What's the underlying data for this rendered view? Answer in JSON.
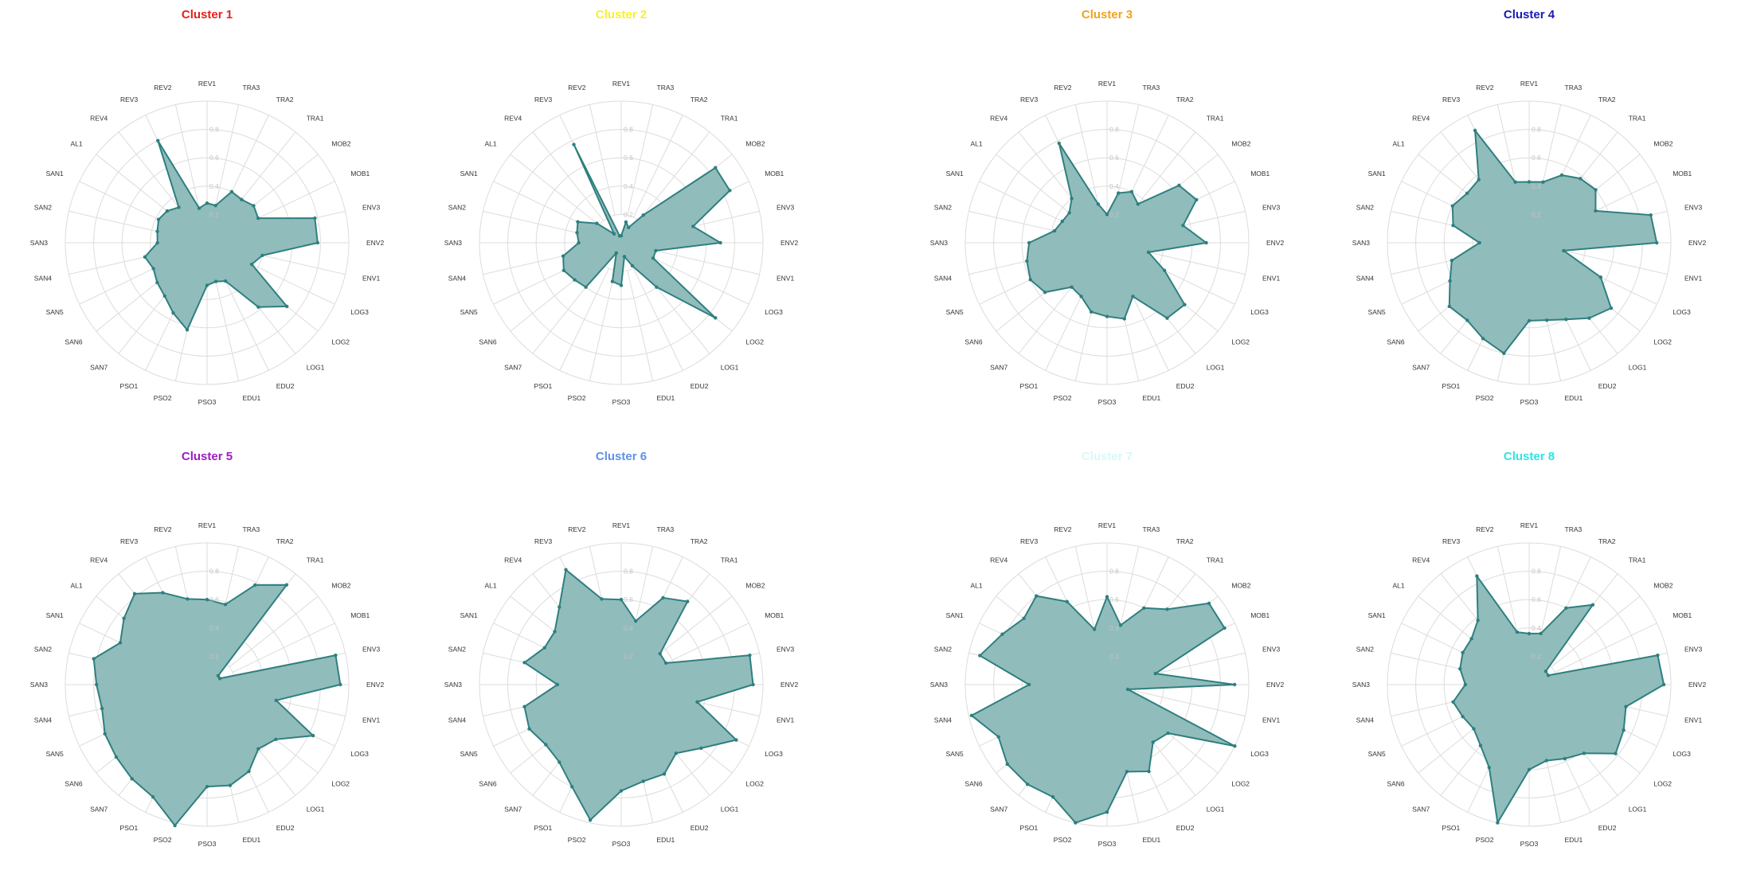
{
  "chart_data": [
    {
      "type": "radar",
      "title": "Cluster 1",
      "title_color": "#e3211c",
      "ylim": [
        0,
        0.8
      ],
      "ticks": [
        "0.2",
        "0.4",
        "0.6",
        "0.8"
      ],
      "axes": [
        "REV1",
        "TRA3",
        "TRA2",
        "TRA1",
        "MOB2",
        "MOB1",
        "ENV3",
        "ENV2",
        "ENV1",
        "LOG3",
        "LOG2",
        "LOG1",
        "EDU2",
        "EDU1",
        "PSO3",
        "PSO2",
        "PSO1",
        "SAN7",
        "SAN6",
        "SAN5",
        "SAN4",
        "SAN3",
        "SAN2",
        "SAN1",
        "AL1",
        "REV4",
        "REV3",
        "REV2"
      ],
      "values": [
        0.28,
        0.27,
        0.4,
        0.39,
        0.42,
        0.4,
        0.78,
        0.78,
        0.4,
        0.35,
        0.72,
        0.58,
        0.3,
        0.28,
        0.3,
        0.63,
        0.55,
        0.48,
        0.45,
        0.42,
        0.45,
        0.35,
        0.36,
        0.38,
        0.36,
        0.32,
        0.8,
        0.25
      ]
    },
    {
      "type": "radar",
      "title": "Cluster 2",
      "title_color": "#f7f032",
      "ylim": [
        0,
        0.8
      ],
      "ticks": [
        "0.2",
        "0.4",
        "0.6",
        "0.8"
      ],
      "axes": [
        "REV1",
        "TRA3",
        "TRA2",
        "TRA1",
        "MOB2",
        "MOB1",
        "ENV3",
        "ENV2",
        "ENV1",
        "LOG3",
        "LOG2",
        "LOG1",
        "EDU2",
        "EDU1",
        "PSO3",
        "PSO2",
        "PSO1",
        "SAN7",
        "SAN6",
        "SAN5",
        "SAN4",
        "SAN3",
        "SAN2",
        "SAN1",
        "AL1",
        "REV4",
        "REV3",
        "REV2"
      ],
      "values": [
        0.05,
        0.15,
        0.12,
        0.25,
        0.85,
        0.85,
        0.52,
        0.7,
        0.25,
        0.25,
        0.85,
        0.4,
        0.18,
        0.1,
        0.3,
        0.28,
        0.08,
        0.4,
        0.42,
        0.45,
        0.42,
        0.3,
        0.32,
        0.34,
        0.22,
        0.08,
        0.77,
        0.05
      ]
    },
    {
      "type": "radar",
      "title": "Cluster 3",
      "title_color": "#f0a21d",
      "ylim": [
        0,
        0.8
      ],
      "ticks": [
        "0.2",
        "0.4",
        "0.6",
        "0.8"
      ],
      "axes": [
        "REV1",
        "TRA3",
        "TRA2",
        "TRA1",
        "MOB2",
        "MOB1",
        "ENV3",
        "ENV2",
        "ENV1",
        "LOG3",
        "LOG2",
        "LOG1",
        "EDU2",
        "EDU1",
        "PSO3",
        "PSO2",
        "PSO1",
        "SAN7",
        "SAN6",
        "SAN5",
        "SAN4",
        "SAN3",
        "SAN2",
        "SAN1",
        "AL1",
        "REV4",
        "REV3",
        "REV2"
      ],
      "values": [
        0.2,
        0.36,
        0.4,
        0.35,
        0.65,
        0.7,
        0.55,
        0.7,
        0.3,
        0.45,
        0.7,
        0.68,
        0.42,
        0.55,
        0.52,
        0.5,
        0.42,
        0.4,
        0.56,
        0.6,
        0.58,
        0.55,
        0.38,
        0.35,
        0.34,
        0.4,
        0.78,
        0.28
      ]
    },
    {
      "type": "radar",
      "title": "Cluster 4",
      "title_color": "#1a1ab4",
      "ylim": [
        0,
        0.8
      ],
      "ticks": [
        "0.2",
        "0.4",
        "0.6",
        "0.8"
      ],
      "axes": [
        "REV1",
        "TRA3",
        "TRA2",
        "TRA1",
        "MOB2",
        "MOB1",
        "ENV3",
        "ENV2",
        "ENV1",
        "LOG3",
        "LOG2",
        "LOG1",
        "EDU2",
        "EDU1",
        "PSO3",
        "PSO2",
        "PSO1",
        "SAN7",
        "SAN6",
        "SAN5",
        "SAN4",
        "SAN3",
        "SAN2",
        "SAN1",
        "AL1",
        "REV4",
        "REV3",
        "REV2"
      ],
      "values": [
        0.43,
        0.44,
        0.53,
        0.58,
        0.6,
        0.52,
        0.88,
        0.9,
        0.25,
        0.56,
        0.74,
        0.68,
        0.6,
        0.56,
        0.55,
        0.8,
        0.75,
        0.7,
        0.72,
        0.62,
        0.56,
        0.35,
        0.55,
        0.6,
        0.56,
        0.57,
        0.88,
        0.44
      ]
    },
    {
      "type": "radar",
      "title": "Cluster 5",
      "title_color": "#9d1cc1",
      "ylim": [
        0,
        0.8
      ],
      "ticks": [
        "0.2",
        "0.4",
        "0.6",
        "0.8"
      ],
      "axes": [
        "REV1",
        "TRA3",
        "TRA2",
        "TRA1",
        "MOB2",
        "MOB1",
        "ENV3",
        "ENV2",
        "ENV1",
        "LOG3",
        "LOG2",
        "LOG1",
        "EDU2",
        "EDU1",
        "PSO3",
        "PSO2",
        "PSO1",
        "SAN7",
        "SAN6",
        "SAN5",
        "SAN4",
        "SAN3",
        "SAN2",
        "SAN1",
        "AL1",
        "REV4",
        "REV3",
        "REV2"
      ],
      "values": [
        0.6,
        0.58,
        0.78,
        0.9,
        0.1,
        0.1,
        0.93,
        0.94,
        0.5,
        0.83,
        0.62,
        0.58,
        0.68,
        0.73,
        0.72,
        1.02,
        0.88,
        0.85,
        0.82,
        0.8,
        0.76,
        0.78,
        0.82,
        0.68,
        0.75,
        0.82,
        0.72,
        0.62
      ]
    },
    {
      "type": "radar",
      "title": "Cluster 6",
      "title_color": "#5d93e6",
      "ylim": [
        0,
        0.8
      ],
      "ticks": [
        "0.2",
        "0.4",
        "0.6",
        "0.8"
      ],
      "axes": [
        "REV1",
        "TRA3",
        "TRA2",
        "TRA1",
        "MOB2",
        "MOB1",
        "ENV3",
        "ENV2",
        "ENV1",
        "LOG3",
        "LOG2",
        "LOG1",
        "EDU2",
        "EDU1",
        "PSO3",
        "PSO2",
        "PSO1",
        "SAN7",
        "SAN6",
        "SAN5",
        "SAN4",
        "SAN3",
        "SAN2",
        "SAN1",
        "AL1",
        "REV4",
        "REV3",
        "REV2"
      ],
      "values": [
        0.6,
        0.46,
        0.68,
        0.75,
        0.35,
        0.35,
        0.93,
        0.93,
        0.55,
        0.9,
        0.72,
        0.62,
        0.7,
        0.7,
        0.75,
        0.98,
        0.8,
        0.7,
        0.68,
        0.72,
        0.7,
        0.45,
        0.7,
        0.6,
        0.6,
        0.7,
        0.9,
        0.62
      ]
    },
    {
      "type": "radar",
      "title": "Cluster 7",
      "title_color": "#d8f8f8",
      "ylim": [
        0,
        0.8
      ],
      "ticks": [
        "0.2",
        "0.4",
        "0.6",
        "0.8"
      ],
      "axes": [
        "REV1",
        "TRA3",
        "TRA2",
        "TRA1",
        "MOB2",
        "MOB1",
        "ENV3",
        "ENV2",
        "ENV1",
        "LOG3",
        "LOG2",
        "LOG1",
        "EDU2",
        "EDU1",
        "PSO3",
        "PSO2",
        "PSO1",
        "SAN7",
        "SAN6",
        "SAN5",
        "SAN4",
        "SAN3",
        "SAN2",
        "SAN1",
        "AL1",
        "REV4",
        "REV3",
        "REV2"
      ],
      "values": [
        0.62,
        0.43,
        0.6,
        0.68,
        0.92,
        0.92,
        0.35,
        0.9,
        0.15,
        1.0,
        0.55,
        0.52,
        0.68,
        0.63,
        0.9,
        1.0,
        0.88,
        0.9,
        0.9,
        0.85,
        0.98,
        0.55,
        0.92,
        0.82,
        0.75,
        0.8,
        0.65,
        0.4
      ]
    },
    {
      "type": "radar",
      "title": "Cluster 8",
      "title_color": "#2fe3e3",
      "ylim": [
        0,
        0.8
      ],
      "ticks": [
        "0.2",
        "0.4",
        "0.6",
        "0.8"
      ],
      "axes": [
        "REV1",
        "TRA3",
        "TRA2",
        "TRA1",
        "MOB2",
        "MOB1",
        "ENV3",
        "ENV2",
        "ENV1",
        "LOG3",
        "LOG2",
        "LOG1",
        "EDU2",
        "EDU1",
        "PSO3",
        "PSO2",
        "PSO1",
        "SAN7",
        "SAN6",
        "SAN5",
        "SAN4",
        "SAN3",
        "SAN2",
        "SAN1",
        "AL1",
        "REV4",
        "REV3",
        "REV2"
      ],
      "values": [
        0.36,
        0.37,
        0.6,
        0.72,
        0.15,
        0.15,
        0.93,
        0.95,
        0.7,
        0.74,
        0.78,
        0.62,
        0.58,
        0.55,
        0.6,
        1.0,
        0.65,
        0.55,
        0.5,
        0.52,
        0.55,
        0.45,
        0.5,
        0.52,
        0.52,
        0.58,
        0.85,
        0.38
      ]
    }
  ]
}
